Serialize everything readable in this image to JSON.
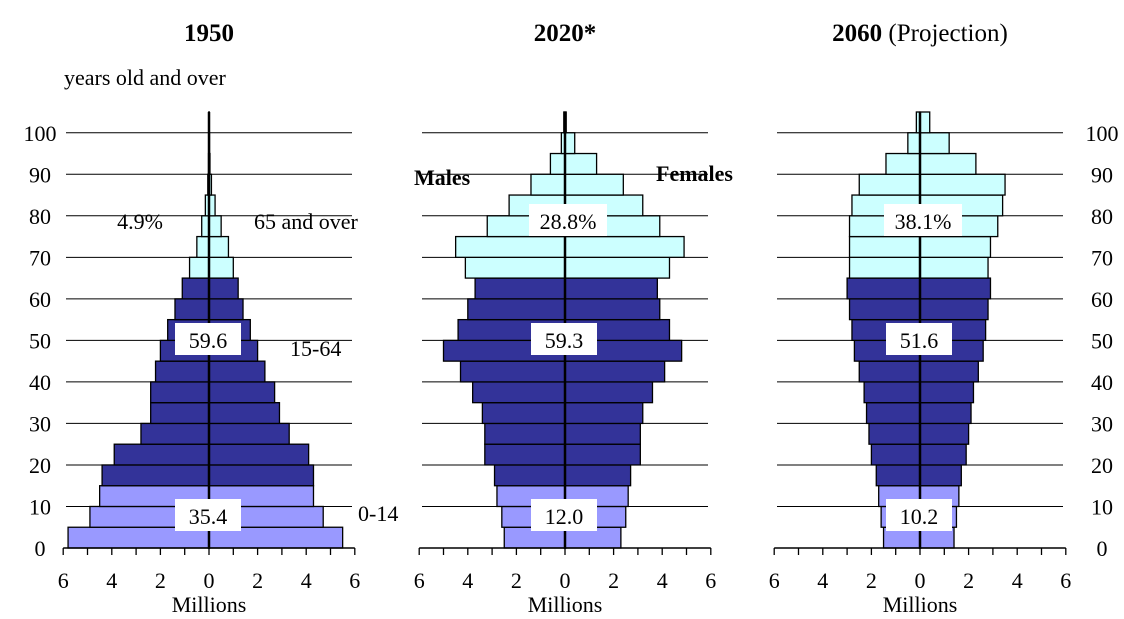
{
  "chart_data": {
    "type": "bar",
    "subtype": "population-pyramid",
    "panels": [
      {
        "title": "1950",
        "title_suffix": "",
        "xlabel": "Millions",
        "age_bins": [
          "0-4",
          "5-9",
          "10-14",
          "15-19",
          "20-24",
          "25-29",
          "30-34",
          "35-39",
          "40-44",
          "45-49",
          "50-54",
          "55-59",
          "60-64",
          "65-69",
          "70-74",
          "75-79",
          "80-84",
          "85-89",
          "90-94",
          "95-99",
          "100+"
        ],
        "males": [
          5.8,
          4.9,
          4.5,
          4.4,
          3.9,
          2.8,
          2.4,
          2.4,
          2.2,
          2.0,
          1.7,
          1.4,
          1.1,
          0.8,
          0.5,
          0.3,
          0.15,
          0.05,
          0.02,
          0.01,
          0.005
        ],
        "females": [
          5.5,
          4.7,
          4.3,
          4.3,
          4.1,
          3.3,
          2.9,
          2.7,
          2.3,
          2.0,
          1.7,
          1.4,
          1.2,
          1.0,
          0.8,
          0.5,
          0.25,
          0.1,
          0.04,
          0.02,
          0.01
        ],
        "group_labels": {
          "elderly": "4.9%",
          "working": "59.6",
          "young": "35.4"
        },
        "elderly_label_boxed": false
      },
      {
        "title": "2020",
        "title_suffix": "*",
        "xlabel": "Millions",
        "age_bins": [
          "0-4",
          "5-9",
          "10-14",
          "15-19",
          "20-24",
          "25-29",
          "30-34",
          "35-39",
          "40-44",
          "45-49",
          "50-54",
          "55-59",
          "60-64",
          "65-69",
          "70-74",
          "75-79",
          "80-84",
          "85-89",
          "90-94",
          "95-99",
          "100+"
        ],
        "males": [
          2.5,
          2.6,
          2.8,
          2.9,
          3.3,
          3.3,
          3.4,
          3.8,
          4.3,
          5.0,
          4.4,
          4.0,
          3.7,
          4.1,
          4.5,
          3.2,
          2.3,
          1.4,
          0.6,
          0.15,
          0.05
        ],
        "females": [
          2.3,
          2.5,
          2.6,
          2.7,
          3.1,
          3.1,
          3.2,
          3.6,
          4.1,
          4.8,
          4.3,
          3.9,
          3.8,
          4.3,
          4.9,
          3.9,
          3.2,
          2.4,
          1.3,
          0.4,
          0.05
        ],
        "group_labels": {
          "elderly": "28.8%",
          "working": "59.3",
          "young": "12.0"
        },
        "elderly_label_boxed": true
      },
      {
        "title": "2060",
        "title_suffix": " (Projection)",
        "xlabel": "Millions",
        "age_bins": [
          "0-4",
          "5-9",
          "10-14",
          "15-19",
          "20-24",
          "25-29",
          "30-34",
          "35-39",
          "40-44",
          "45-49",
          "50-54",
          "55-59",
          "60-64",
          "65-69",
          "70-74",
          "75-79",
          "80-84",
          "85-89",
          "90-94",
          "95-99",
          "100+"
        ],
        "males": [
          1.5,
          1.6,
          1.7,
          1.8,
          2.0,
          2.1,
          2.2,
          2.3,
          2.5,
          2.7,
          2.8,
          2.9,
          3.0,
          2.9,
          2.9,
          2.9,
          2.8,
          2.5,
          1.4,
          0.5,
          0.15
        ],
        "females": [
          1.4,
          1.5,
          1.6,
          1.7,
          1.9,
          2.0,
          2.1,
          2.2,
          2.4,
          2.6,
          2.7,
          2.8,
          2.9,
          2.8,
          2.9,
          3.2,
          3.4,
          3.5,
          2.3,
          1.2,
          0.4
        ],
        "group_labels": {
          "elderly": "38.1%",
          "working": "51.6",
          "young": "10.2"
        },
        "elderly_label_boxed": true
      }
    ],
    "x_ticks": [
      6,
      4,
      2,
      0,
      2,
      4,
      6
    ],
    "xlim": [
      -6,
      6
    ],
    "y_ticks": [
      0,
      10,
      20,
      30,
      40,
      50,
      60,
      70,
      80,
      90,
      100
    ],
    "ylim": [
      0,
      105
    ],
    "annotations": {
      "y_unit": "years old and over",
      "males": "Males",
      "females": "Females",
      "elderly_group": "65 and over",
      "working_group": "15-64",
      "young_group": "0-14"
    },
    "colors": {
      "young": "#9999ff",
      "working": "#333399",
      "elderly": "#ccffff",
      "outline": "#000000"
    },
    "grid": "horizontal"
  }
}
